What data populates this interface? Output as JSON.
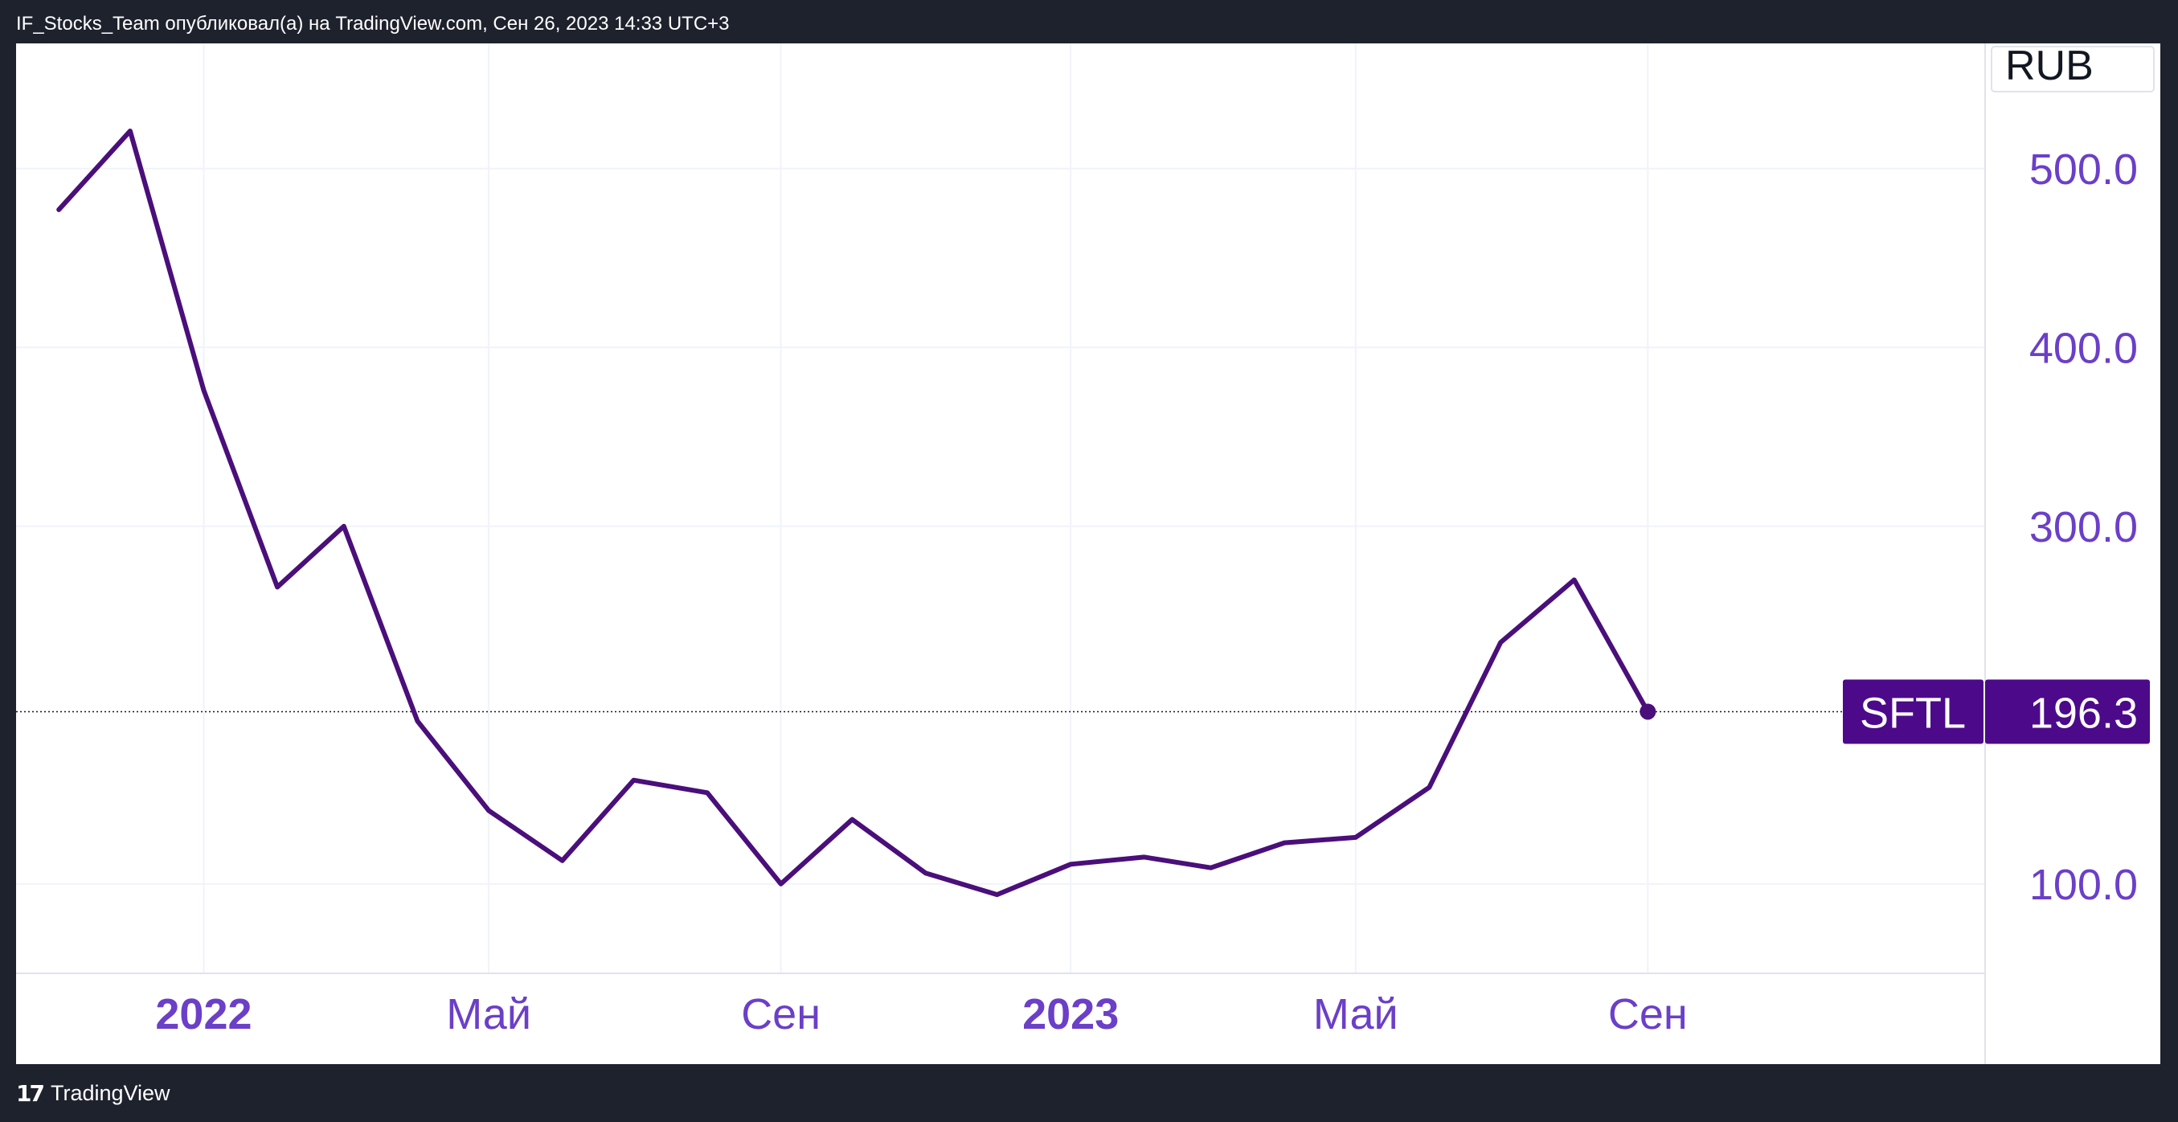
{
  "header": {
    "publish_text": "IF_Stocks_Team опубликовал(а) на TradingView.com, Сен 26, 2023 14:33 UTC+3"
  },
  "footer": {
    "brand": "TradingView",
    "logo_icon": "tradingview-logo-icon"
  },
  "chart_data": {
    "type": "line",
    "currency": "RUB",
    "symbol": "SFTL",
    "last_value_label": "196.3",
    "last_value": 196.3,
    "line_color": "#4a0f7a",
    "accent_color": "#6b3fc8",
    "badge_color": "#4c0a8a",
    "x_ticks": [
      {
        "label": "2022",
        "date": "2022-01-01",
        "bold": true
      },
      {
        "label": "Май",
        "date": "2022-05-01",
        "bold": false
      },
      {
        "label": "Сен",
        "date": "2022-09-01",
        "bold": false
      },
      {
        "label": "2023",
        "date": "2023-01-01",
        "bold": true
      },
      {
        "label": "Май",
        "date": "2023-05-01",
        "bold": false
      },
      {
        "label": "Сен",
        "date": "2023-09-01",
        "bold": false
      }
    ],
    "y_ticks": [
      {
        "label": "500.0",
        "value": 500
      },
      {
        "label": "400.0",
        "value": 400
      },
      {
        "label": "300.0",
        "value": 300
      },
      {
        "label": "100.0",
        "value": 100
      }
    ],
    "y_range": [
      50,
      570
    ],
    "x_range": [
      "2021-10-14",
      "2024-01-21"
    ],
    "grid": true,
    "points": [
      {
        "x": "2021-11-01",
        "y": 477
      },
      {
        "x": "2021-12-01",
        "y": 521
      },
      {
        "x": "2022-01-01",
        "y": 376
      },
      {
        "x": "2022-02-01",
        "y": 266
      },
      {
        "x": "2022-03-01",
        "y": 300
      },
      {
        "x": "2022-04-01",
        "y": 191
      },
      {
        "x": "2022-05-01",
        "y": 141
      },
      {
        "x": "2022-06-01",
        "y": 113
      },
      {
        "x": "2022-07-01",
        "y": 158
      },
      {
        "x": "2022-08-01",
        "y": 151
      },
      {
        "x": "2022-09-01",
        "y": 100
      },
      {
        "x": "2022-10-01",
        "y": 136
      },
      {
        "x": "2022-11-01",
        "y": 106
      },
      {
        "x": "2022-12-01",
        "y": 94
      },
      {
        "x": "2023-01-01",
        "y": 111
      },
      {
        "x": "2023-02-01",
        "y": 115
      },
      {
        "x": "2023-03-01",
        "y": 109
      },
      {
        "x": "2023-04-01",
        "y": 123
      },
      {
        "x": "2023-05-01",
        "y": 126
      },
      {
        "x": "2023-06-01",
        "y": 154
      },
      {
        "x": "2023-07-01",
        "y": 235
      },
      {
        "x": "2023-08-01",
        "y": 270
      },
      {
        "x": "2023-09-01",
        "y": 196.3
      }
    ]
  }
}
